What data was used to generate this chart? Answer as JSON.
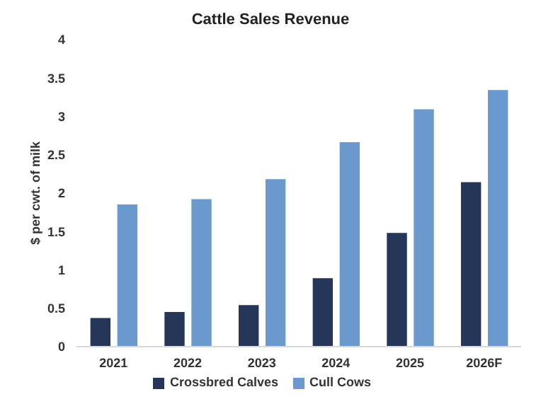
{
  "chart_data": {
    "type": "bar",
    "title": "Cattle Sales Revenue",
    "ylabel": "$ per cwt. of milk",
    "categories": [
      "2021",
      "2022",
      "2023",
      "2024",
      "2025",
      "2026F"
    ],
    "series": [
      {
        "name": "Crossbred Calves",
        "color": "#253659",
        "values": [
          0.38,
          0.46,
          0.55,
          0.9,
          1.49,
          2.15
        ]
      },
      {
        "name": "Cull Cows",
        "color": "#6a9acd",
        "values": [
          1.86,
          1.93,
          2.19,
          2.67,
          3.1,
          3.35
        ]
      }
    ],
    "ylim": [
      0,
      4
    ],
    "yticks": [
      0,
      0.5,
      1,
      1.5,
      2,
      2.5,
      3,
      3.5,
      4
    ],
    "grid": false,
    "legend": "bottom"
  }
}
